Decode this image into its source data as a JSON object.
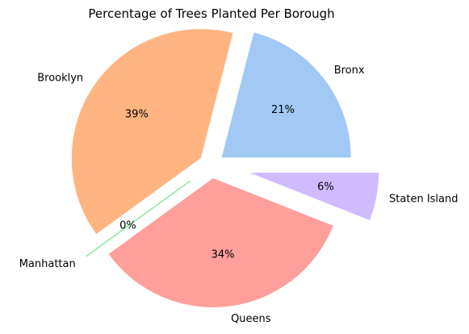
{
  "chart_data": {
    "type": "pie",
    "title": "Percentage of Trees Planted Per Borough",
    "categories": [
      "Bronx",
      "Brooklyn",
      "Manhattan",
      "Queens",
      "Staten Island"
    ],
    "values": [
      21,
      39,
      0,
      34,
      6
    ],
    "value_labels": [
      "21%",
      "39%",
      "0%",
      "34%",
      "6%"
    ],
    "colors": [
      "#a1c9f4",
      "#ffb482",
      "#8de5a1",
      "#ff9f9b",
      "#d0bbff"
    ],
    "explode": [
      0.1,
      0.1,
      0.2,
      0.1,
      0.3
    ],
    "start_angle_deg": 0,
    "direction": "counterclockwise",
    "legend": "none"
  }
}
